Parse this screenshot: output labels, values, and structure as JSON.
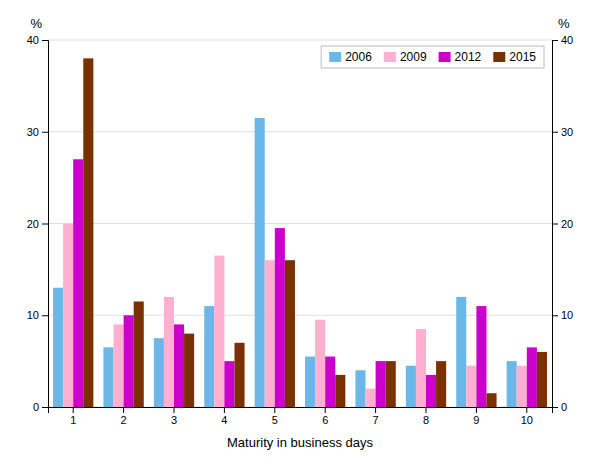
{
  "chart_data": {
    "type": "bar",
    "xlabel": "Maturity in business days",
    "ylabel": "%",
    "y2label": "%",
    "categories": [
      "1",
      "2",
      "3",
      "4",
      "5",
      "6",
      "7",
      "8",
      "9",
      "10"
    ],
    "series": [
      {
        "name": "2006",
        "color": "#6BB8E8",
        "values": [
          13.0,
          6.5,
          7.5,
          11.0,
          31.5,
          5.5,
          4.0,
          4.5,
          12.0,
          5.0
        ]
      },
      {
        "name": "2009",
        "color": "#FFB0D0",
        "values": [
          20.0,
          9.0,
          12.0,
          16.5,
          16.0,
          9.5,
          2.0,
          8.5,
          4.5,
          4.5
        ]
      },
      {
        "name": "2012",
        "color": "#CC00CC",
        "values": [
          27.0,
          10.0,
          9.0,
          5.0,
          19.5,
          5.5,
          5.0,
          3.5,
          11.0,
          6.5
        ]
      },
      {
        "name": "2015",
        "color": "#7B3000",
        "values": [
          38.0,
          11.5,
          8.0,
          7.0,
          16.0,
          3.5,
          5.0,
          5.0,
          1.5,
          6.0
        ]
      }
    ],
    "ylim": [
      0,
      40
    ],
    "yticks": [
      0,
      10,
      20,
      30,
      40
    ],
    "y2lim": [
      0,
      40
    ],
    "y2ticks": [
      0,
      10,
      20,
      30,
      40
    ],
    "grid": true,
    "legend": "upper right"
  }
}
